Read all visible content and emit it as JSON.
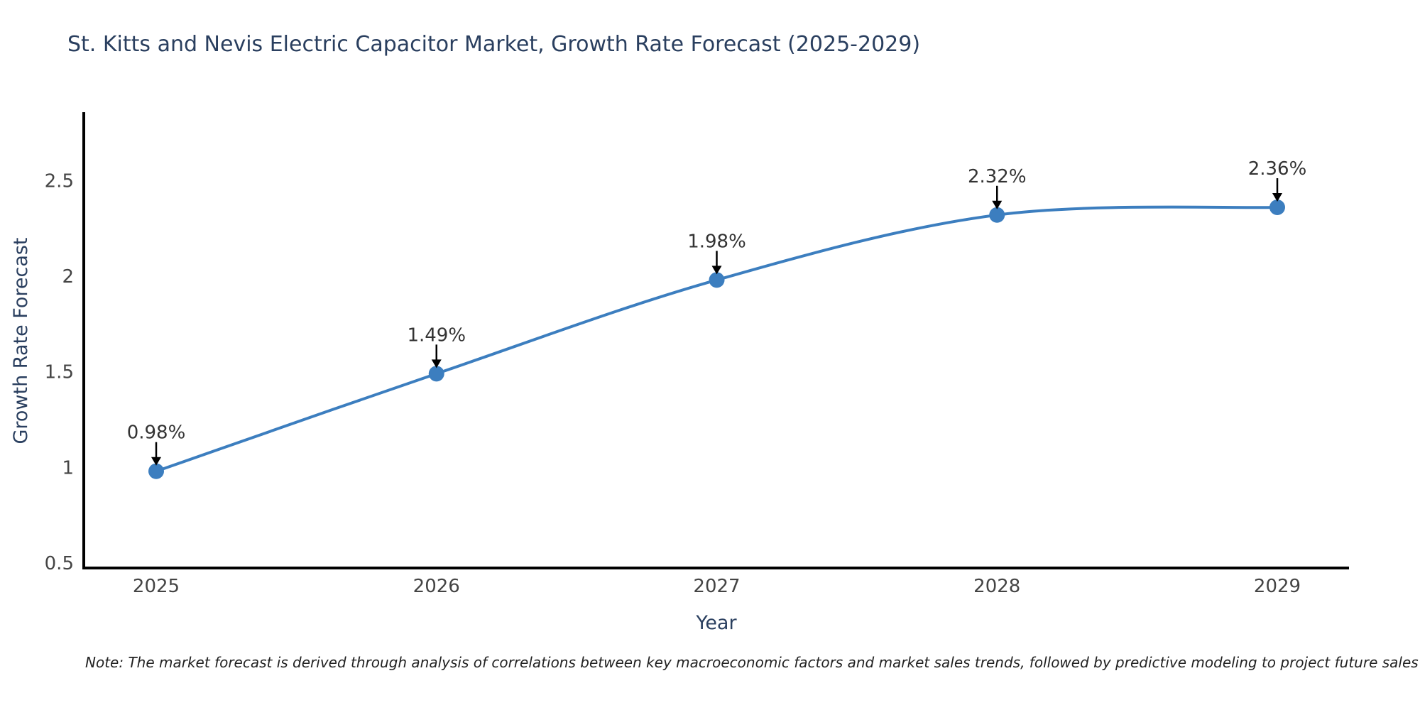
{
  "chart_data": {
    "type": "line",
    "title": "St. Kitts and Nevis Electric Capacitor Market, Growth Rate Forecast (2025-2029)",
    "xlabel": "Year",
    "ylabel": "Growth Rate Forecast",
    "categories": [
      "2025",
      "2026",
      "2027",
      "2028",
      "2029"
    ],
    "values": [
      0.98,
      1.49,
      1.98,
      2.32,
      2.36
    ],
    "point_labels": [
      "0.98%",
      "1.49%",
      "1.98%",
      "2.32%",
      "2.36%"
    ],
    "yticks": [
      0.5,
      1,
      1.5,
      2,
      2.5
    ],
    "ytick_labels": [
      "0.5",
      "1",
      "1.5",
      "2",
      "2.5"
    ],
    "ylim": [
      0.5,
      2.85
    ],
    "grid": false,
    "legend": "none",
    "line_shape": "spline",
    "line_color": "#3c7ebf",
    "marker_color": "#3c7ebf",
    "axis_line_color": "#000000",
    "annotation_arrow_color": "#000000"
  },
  "note": "Note: The market forecast is derived through analysis of correlations between key macroeconomic factors and market sales trends, followed by predictive modeling to project future sales",
  "colors": {
    "title": "#2a3f5f",
    "tick_label": "#444444",
    "background": "#ffffff"
  }
}
